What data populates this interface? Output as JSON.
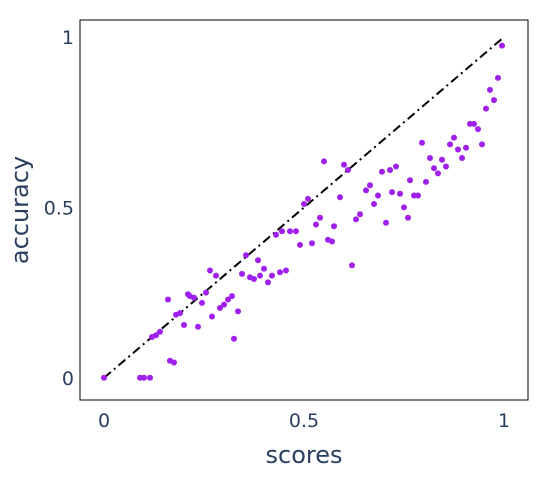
{
  "chart_data": {
    "type": "scatter",
    "title": "",
    "xlabel": "scores",
    "ylabel": "accuracy",
    "xlim": [
      -0.06,
      1.06
    ],
    "ylim": [
      -0.065,
      1.05
    ],
    "x_ticks": [
      {
        "value": 0,
        "label": "0"
      },
      {
        "value": 0.5,
        "label": "0.5"
      },
      {
        "value": 1,
        "label": "1"
      }
    ],
    "y_ticks": [
      {
        "value": 0,
        "label": "0"
      },
      {
        "value": 0.5,
        "label": "0.5"
      },
      {
        "value": 1,
        "label": "1"
      }
    ],
    "grid": false,
    "legend": "none",
    "colors": {
      "points": "#a020f0",
      "reference_line": "#000000",
      "axis_text": "#2a3f5f",
      "frame": "#000000"
    },
    "reference_line": {
      "style": "dash-dot",
      "x": [
        0,
        1
      ],
      "y": [
        0,
        1
      ]
    },
    "series": [
      {
        "points": [
          [
            0.0,
            0.0
          ],
          [
            0.09,
            0.0
          ],
          [
            0.1,
            0.0
          ],
          [
            0.115,
            0.0
          ],
          [
            0.12,
            0.12
          ],
          [
            0.13,
            0.125
          ],
          [
            0.14,
            0.135
          ],
          [
            0.16,
            0.23
          ],
          [
            0.165,
            0.05
          ],
          [
            0.175,
            0.045
          ],
          [
            0.18,
            0.185
          ],
          [
            0.19,
            0.19
          ],
          [
            0.2,
            0.155
          ],
          [
            0.21,
            0.245
          ],
          [
            0.215,
            0.24
          ],
          [
            0.225,
            0.235
          ],
          [
            0.235,
            0.15
          ],
          [
            0.245,
            0.22
          ],
          [
            0.255,
            0.25
          ],
          [
            0.265,
            0.315
          ],
          [
            0.27,
            0.18
          ],
          [
            0.28,
            0.3
          ],
          [
            0.29,
            0.205
          ],
          [
            0.3,
            0.215
          ],
          [
            0.31,
            0.23
          ],
          [
            0.32,
            0.24
          ],
          [
            0.325,
            0.115
          ],
          [
            0.335,
            0.195
          ],
          [
            0.345,
            0.305
          ],
          [
            0.355,
            0.36
          ],
          [
            0.365,
            0.295
          ],
          [
            0.375,
            0.29
          ],
          [
            0.385,
            0.345
          ],
          [
            0.39,
            0.3
          ],
          [
            0.4,
            0.32
          ],
          [
            0.41,
            0.28
          ],
          [
            0.42,
            0.3
          ],
          [
            0.43,
            0.42
          ],
          [
            0.44,
            0.31
          ],
          [
            0.445,
            0.43
          ],
          [
            0.455,
            0.315
          ],
          [
            0.465,
            0.43
          ],
          [
            0.48,
            0.43
          ],
          [
            0.49,
            0.39
          ],
          [
            0.5,
            0.51
          ],
          [
            0.51,
            0.525
          ],
          [
            0.52,
            0.395
          ],
          [
            0.53,
            0.45
          ],
          [
            0.54,
            0.47
          ],
          [
            0.55,
            0.635
          ],
          [
            0.56,
            0.405
          ],
          [
            0.57,
            0.4
          ],
          [
            0.575,
            0.445
          ],
          [
            0.59,
            0.53
          ],
          [
            0.6,
            0.625
          ],
          [
            0.61,
            0.61
          ],
          [
            0.62,
            0.33
          ],
          [
            0.63,
            0.465
          ],
          [
            0.64,
            0.48
          ],
          [
            0.655,
            0.55
          ],
          [
            0.665,
            0.565
          ],
          [
            0.675,
            0.51
          ],
          [
            0.685,
            0.535
          ],
          [
            0.695,
            0.605
          ],
          [
            0.705,
            0.455
          ],
          [
            0.715,
            0.61
          ],
          [
            0.72,
            0.545
          ],
          [
            0.73,
            0.62
          ],
          [
            0.74,
            0.54
          ],
          [
            0.75,
            0.5
          ],
          [
            0.76,
            0.47
          ],
          [
            0.765,
            0.58
          ],
          [
            0.775,
            0.535
          ],
          [
            0.785,
            0.535
          ],
          [
            0.795,
            0.69
          ],
          [
            0.805,
            0.575
          ],
          [
            0.815,
            0.645
          ],
          [
            0.825,
            0.615
          ],
          [
            0.835,
            0.6
          ],
          [
            0.845,
            0.64
          ],
          [
            0.855,
            0.62
          ],
          [
            0.865,
            0.685
          ],
          [
            0.875,
            0.705
          ],
          [
            0.885,
            0.67
          ],
          [
            0.895,
            0.645
          ],
          [
            0.905,
            0.675
          ],
          [
            0.915,
            0.745
          ],
          [
            0.925,
            0.745
          ],
          [
            0.935,
            0.73
          ],
          [
            0.945,
            0.685
          ],
          [
            0.955,
            0.79
          ],
          [
            0.965,
            0.845
          ],
          [
            0.975,
            0.815
          ],
          [
            0.985,
            0.88
          ],
          [
            0.995,
            0.975
          ]
        ]
      }
    ]
  }
}
